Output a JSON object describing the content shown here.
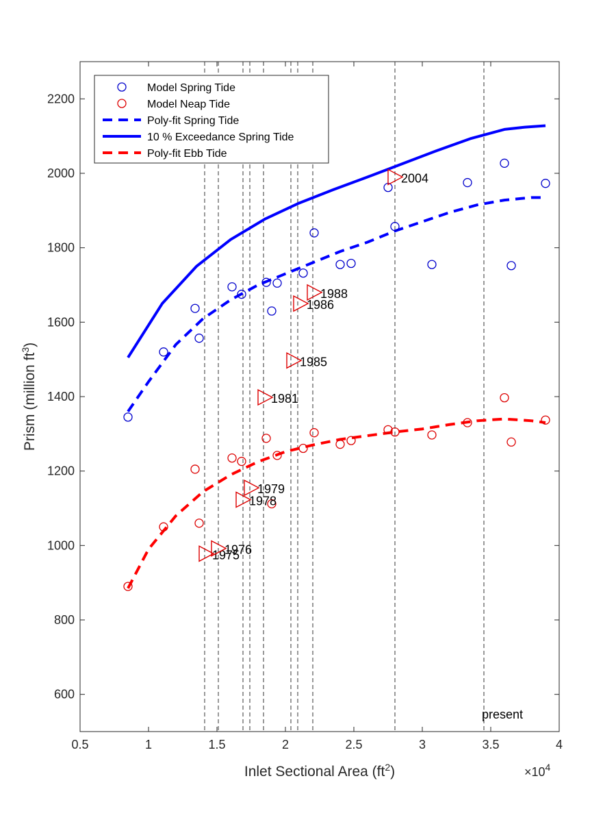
{
  "chart_data": {
    "type": "scatter",
    "xlabel": "Inlet Sectional Area (ft",
    "xlabel_sup": "2",
    "xlabel_close": ")",
    "ylabel": "Prism (million ft",
    "ylabel_sup": "3",
    "ylabel_close": ")",
    "x_exponent_prefix": "×10",
    "x_exponent": "4",
    "xlim": [
      0.5,
      4.0
    ],
    "ylim": [
      500,
      2300
    ],
    "xticks": [
      0.5,
      1,
      1.5,
      2,
      2.5,
      3,
      3.5,
      4
    ],
    "xtick_labels": [
      "0.5",
      "1",
      "1.5",
      "2",
      "2.5",
      "3",
      "3.5",
      "4"
    ],
    "yticks": [
      600,
      800,
      1000,
      1200,
      1400,
      1600,
      1800,
      2000,
      2200
    ],
    "ytick_labels": [
      "600",
      "800",
      "1000",
      "1200",
      "1400",
      "1600",
      "1800",
      "2000",
      "2200"
    ],
    "grid": false,
    "legend_placement": "top-left",
    "legend": [
      {
        "label": "Model Spring Tide",
        "marker": "circle",
        "color": "#0000cc"
      },
      {
        "label": "Model Neap Tide",
        "marker": "circle",
        "color": "#dd0000"
      },
      {
        "label": "Poly-fit Spring Tide",
        "style": "dashed",
        "color": "#0000ff"
      },
      {
        "label": "10 % Exceedance Spring Tide",
        "style": "solid",
        "color": "#0000ff"
      },
      {
        "label": "Poly-fit Ebb Tide",
        "style": "dashed",
        "color": "#ff0000"
      }
    ],
    "series": [
      {
        "name": "Model Spring Tide",
        "kind": "circles",
        "color": "#0000cc",
        "x": [
          0.85,
          1.11,
          1.34,
          1.37,
          1.61,
          1.68,
          1.86,
          1.9,
          1.94,
          2.13,
          2.21,
          2.4,
          2.48,
          2.75,
          2.8,
          3.07,
          3.33,
          3.6,
          3.65,
          3.9
        ],
        "y": [
          1345,
          1520,
          1637,
          1557,
          1695,
          1675,
          1707,
          1630,
          1705,
          1732,
          1840,
          1755,
          1758,
          1962,
          1857,
          1755,
          1975,
          2027,
          1752,
          1973
        ]
      },
      {
        "name": "Model Neap Tide",
        "kind": "circles",
        "color": "#dd0000",
        "x": [
          0.85,
          1.11,
          1.34,
          1.37,
          1.61,
          1.68,
          1.86,
          1.9,
          1.94,
          2.13,
          2.21,
          2.4,
          2.48,
          2.75,
          2.8,
          3.07,
          3.33,
          3.6,
          3.65,
          3.9
        ],
        "y": [
          890,
          1050,
          1205,
          1060,
          1235,
          1226,
          1288,
          1112,
          1242,
          1261,
          1303,
          1272,
          1282,
          1311,
          1305,
          1297,
          1330,
          1397,
          1278,
          1337
        ]
      },
      {
        "name": "Poly-fit Spring Tide",
        "kind": "line",
        "style": "dashed",
        "color": "#0000ff",
        "x": [
          0.85,
          1.0,
          1.2,
          1.4,
          1.6,
          1.8,
          2.0,
          2.2,
          2.4,
          2.6,
          2.8,
          3.0,
          3.2,
          3.4,
          3.6,
          3.8,
          3.9
        ],
        "y": [
          1360,
          1440,
          1540,
          1610,
          1660,
          1700,
          1730,
          1760,
          1790,
          1815,
          1845,
          1870,
          1895,
          1915,
          1928,
          1935,
          1935
        ]
      },
      {
        "name": "10 % Exceedance Spring Tide",
        "kind": "line",
        "style": "solid",
        "color": "#0000ff",
        "x": [
          0.85,
          1.1,
          1.35,
          1.6,
          1.85,
          2.1,
          2.35,
          2.6,
          2.85,
          3.1,
          3.35,
          3.6,
          3.75,
          3.9
        ],
        "y": [
          1505,
          1650,
          1750,
          1822,
          1877,
          1920,
          1956,
          1990,
          2025,
          2060,
          2093,
          2118,
          2124,
          2128
        ]
      },
      {
        "name": "Poly-fit Ebb Tide",
        "kind": "line",
        "style": "dashed",
        "color": "#ff0000",
        "x": [
          0.85,
          1.0,
          1.2,
          1.4,
          1.6,
          1.8,
          2.0,
          2.2,
          2.4,
          2.6,
          2.8,
          3.0,
          3.2,
          3.4,
          3.6,
          3.8,
          3.9
        ],
        "y": [
          885,
          990,
          1080,
          1145,
          1190,
          1225,
          1252,
          1270,
          1285,
          1295,
          1305,
          1313,
          1325,
          1335,
          1340,
          1335,
          1330
        ]
      }
    ],
    "year_markers": [
      {
        "label": "1975",
        "x": 1.42,
        "y": 978
      },
      {
        "label": "1976",
        "x": 1.51,
        "y": 992
      },
      {
        "label": "1978",
        "x": 1.69,
        "y": 1123
      },
      {
        "label": "1979",
        "x": 1.75,
        "y": 1155
      },
      {
        "label": "1981",
        "x": 1.85,
        "y": 1398
      },
      {
        "label": "1985",
        "x": 2.06,
        "y": 1497
      },
      {
        "label": "1986",
        "x": 2.11,
        "y": 1650
      },
      {
        "label": "1988",
        "x": 2.21,
        "y": 1680
      },
      {
        "label": "2004",
        "x": 2.8,
        "y": 1990
      }
    ],
    "vertical_lines_x": [
      1.41,
      1.51,
      1.69,
      1.74,
      1.84,
      2.04,
      2.09,
      2.2,
      2.8,
      3.45
    ],
    "present_label": "present",
    "present_label_pos": {
      "x": 3.45,
      "y": 530
    }
  }
}
